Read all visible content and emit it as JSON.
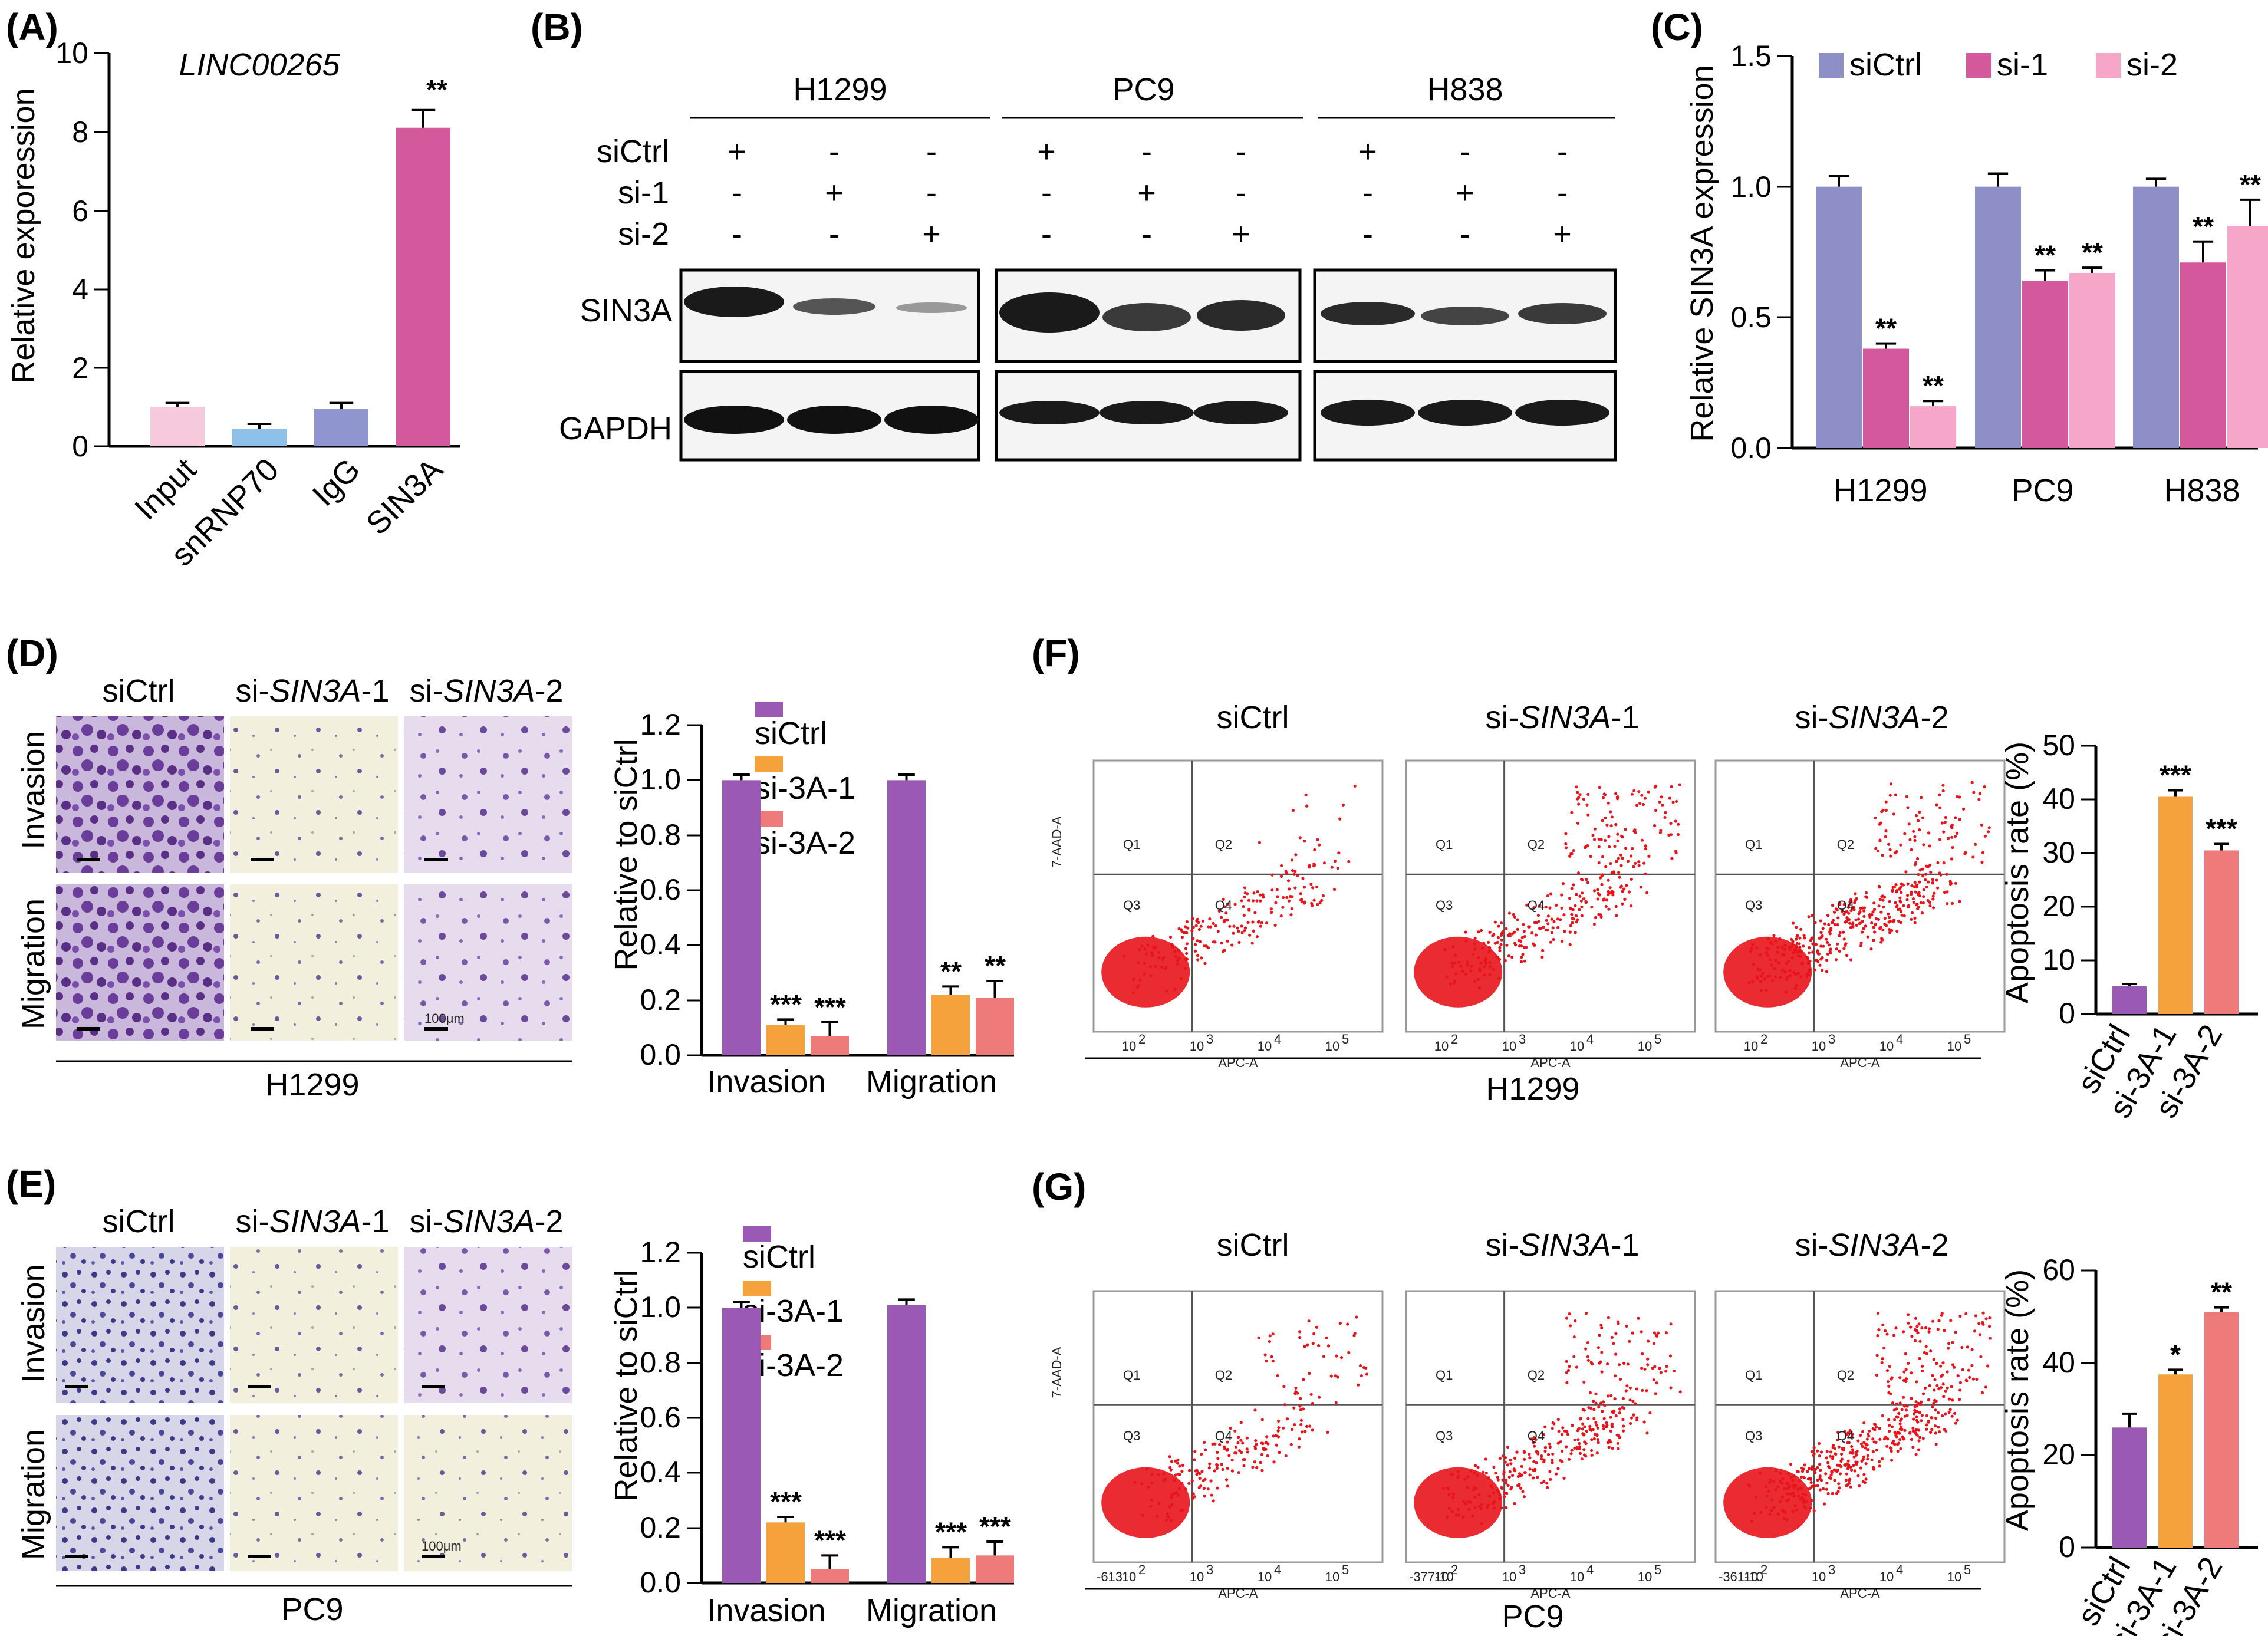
{
  "panels": {
    "A": "(A)",
    "B": "(B)",
    "C": "(C)",
    "D": "(D)",
    "E": "(E)",
    "F": "(F)",
    "G": "(G)"
  },
  "colors": {
    "siCtrl_C": "#8e8fc7",
    "si1_C": "#d4589c",
    "si2_C": "#f5a6c9",
    "purple": "#9b59b6",
    "orange": "#f5a23d",
    "salmon": "#ef7a7a",
    "input": "#f7c9dd",
    "snRNP70": "#8ec1ea",
    "IgG": "#8e95cf",
    "SIN3A": "#d4589c",
    "dots": "#e8141b"
  },
  "panelA": {
    "gene": "LINC00265",
    "ylabel": "Relative exporession",
    "yticks": [
      "0",
      "2",
      "4",
      "6",
      "8",
      "10"
    ],
    "significance": "**"
  },
  "panelB": {
    "cells": [
      "H1299",
      "PC9",
      "H838"
    ],
    "rows": [
      "siCtrl",
      "si-1",
      "si-2"
    ],
    "plus": "+",
    "minus": "-",
    "blots": [
      "SIN3A",
      "GAPDH"
    ]
  },
  "panelC": {
    "ylabel": "Relative SIN3A expression",
    "legend": [
      "siCtrl",
      "si-1",
      "si-2"
    ],
    "yticks": [
      "0.0",
      "0.5",
      "1.0",
      "1.5"
    ],
    "stars": "**"
  },
  "panelD": {
    "cols": [
      "siCtrl",
      "si-",
      "SIN3A",
      "-1",
      "si-",
      "SIN3A",
      "-2"
    ],
    "rows": [
      "Invasion",
      "Migration"
    ],
    "cell": "H1299",
    "scale": "100μm",
    "ylabel": "Relative to siCtrl",
    "legend": [
      "siCtrl",
      "si-3A-1",
      "si-3A-2"
    ],
    "yticks": [
      "0.0",
      "0.2",
      "0.4",
      "0.6",
      "0.8",
      "1.0",
      "1.2"
    ],
    "xcats": [
      "Invasion",
      "Migration"
    ],
    "stars": [
      "***",
      "***",
      "**",
      "**"
    ]
  },
  "panelE": {
    "cell": "PC9",
    "stars": [
      "***",
      "***",
      "***",
      "***"
    ]
  },
  "panelF": {
    "titles": [
      "siCtrl",
      "si-",
      "SIN3A",
      "-1",
      "si-",
      "SIN3A",
      "-2"
    ],
    "cell": "H1299",
    "quadrants": [
      "Q1",
      "Q2",
      "Q3",
      "Q4"
    ],
    "xaxis": "APC-A",
    "yaxis": "7-AAD-A",
    "xt": [
      "10",
      "10",
      "10",
      "10"
    ],
    "xtsup": [
      "2",
      "3",
      "4",
      "5"
    ],
    "ylabel": "Apoptosis rate (%)",
    "yticks": [
      "0",
      "10",
      "20",
      "30",
      "40",
      "50"
    ],
    "xcats": [
      "siCtrl",
      "si-3A-1",
      "si-3A-2"
    ],
    "stars": [
      "***",
      "***"
    ]
  },
  "panelG": {
    "cell": "PC9",
    "xleft": [
      "-613",
      "0",
      "-377-10",
      "0",
      "-361-10",
      "0"
    ],
    "yticks": [
      "0",
      "20",
      "40",
      "60"
    ],
    "stars": [
      "*",
      "**"
    ]
  },
  "chart_data": [
    {
      "type": "bar",
      "title": "LINC00265",
      "categories": [
        "Input",
        "snRNP70",
        "IgG",
        "SIN3A"
      ],
      "values": [
        1.0,
        0.45,
        0.95,
        8.1
      ],
      "errors": [
        0.1,
        0.12,
        0.15,
        0.45
      ],
      "ylabel": "Relative exporession",
      "ylim": [
        0,
        10
      ]
    },
    {
      "type": "bar",
      "categories": [
        "H1299",
        "PC9",
        "H838"
      ],
      "series": [
        {
          "name": "siCtrl",
          "values": [
            1.0,
            1.0,
            1.0
          ],
          "errors": [
            0.04,
            0.05,
            0.03
          ]
        },
        {
          "name": "si-1",
          "values": [
            0.38,
            0.64,
            0.71
          ],
          "errors": [
            0.02,
            0.04,
            0.08
          ]
        },
        {
          "name": "si-2",
          "values": [
            0.16,
            0.67,
            0.85
          ],
          "errors": [
            0.02,
            0.02,
            0.1
          ]
        }
      ],
      "ylabel": "Relative SIN3A expression",
      "ylim": [
        0,
        1.5
      ]
    },
    {
      "type": "bar",
      "categories": [
        "Invasion",
        "Migration"
      ],
      "series": [
        {
          "name": "siCtrl",
          "values": [
            1.0,
            1.0
          ],
          "errors": [
            0.02,
            0.02
          ]
        },
        {
          "name": "si-3A-1",
          "values": [
            0.11,
            0.22
          ],
          "errors": [
            0.02,
            0.03
          ]
        },
        {
          "name": "si-3A-2",
          "values": [
            0.07,
            0.21
          ],
          "errors": [
            0.05,
            0.06
          ]
        }
      ],
      "ylabel": "Relative to siCtrl",
      "ylim": [
        0,
        1.2
      ],
      "xlabel": "H1299"
    },
    {
      "type": "bar",
      "categories": [
        "Invasion",
        "Migration"
      ],
      "series": [
        {
          "name": "siCtrl",
          "values": [
            1.0,
            1.01
          ],
          "errors": [
            0.02,
            0.02
          ]
        },
        {
          "name": "si-3A-1",
          "values": [
            0.22,
            0.09
          ],
          "errors": [
            0.02,
            0.04
          ]
        },
        {
          "name": "si-3A-2",
          "values": [
            0.05,
            0.1
          ],
          "errors": [
            0.05,
            0.05
          ]
        }
      ],
      "ylabel": "Relative to siCtrl",
      "ylim": [
        0,
        1.2
      ],
      "xlabel": "PC9"
    },
    {
      "type": "bar",
      "categories": [
        "siCtrl",
        "si-3A-1",
        "si-3A-2"
      ],
      "values": [
        5.2,
        40.5,
        30.5
      ],
      "errors": [
        0.4,
        1.2,
        1.2
      ],
      "ylabel": "Apoptosis rate (%)",
      "ylim": [
        0,
        50
      ],
      "xlabel": "H1299"
    },
    {
      "type": "bar",
      "categories": [
        "siCtrl",
        "si-3A-1",
        "si-3A-2"
      ],
      "values": [
        26,
        37.5,
        51
      ],
      "errors": [
        3,
        1,
        1
      ],
      "ylabel": "Apoptosis rate (%)",
      "ylim": [
        0,
        60
      ],
      "xlabel": "PC9"
    }
  ]
}
